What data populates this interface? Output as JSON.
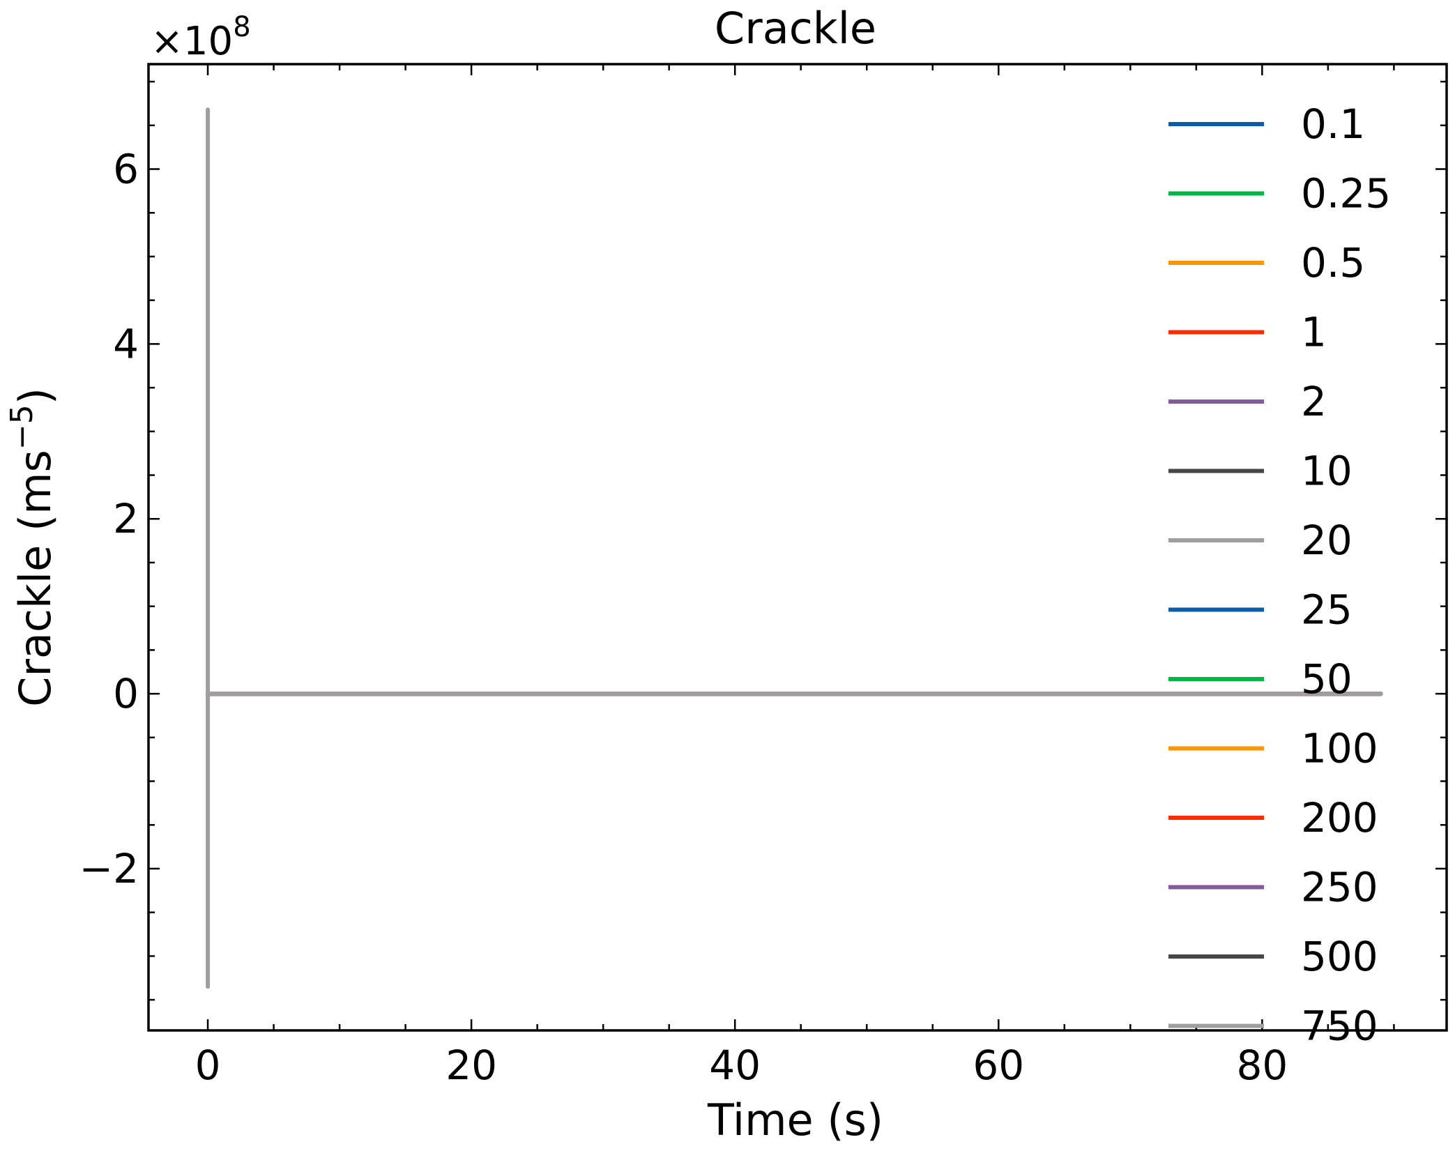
{
  "chart_data": {
    "type": "line",
    "title": "Crackle",
    "xlabel": "Time (s)",
    "ylabel": "Crackle (ms",
    "ylabel_sup": "−5",
    "ylabel_close": ")",
    "y_offset_text": "×10",
    "y_offset_exp": "8",
    "xlim": [
      -4.5,
      94
    ],
    "ylim": [
      -3.85,
      7.2
    ],
    "y_scale": 100000000,
    "x_ticks": [
      0,
      20,
      40,
      60,
      80
    ],
    "x_tick_labels": [
      "0",
      "20",
      "40",
      "60",
      "80"
    ],
    "y_ticks": [
      -2,
      0,
      2,
      4,
      6
    ],
    "y_tick_labels": [
      "−2",
      "0",
      "2",
      "4",
      "6"
    ],
    "grid": false,
    "legend_position": "right",
    "series": [
      {
        "name": "0.1",
        "color": "#0c5da5",
        "points": [
          [
            0,
            0
          ],
          [
            89,
            0
          ]
        ]
      },
      {
        "name": "0.25",
        "color": "#00b945",
        "points": [
          [
            0,
            0
          ],
          [
            89,
            0
          ]
        ]
      },
      {
        "name": "0.5",
        "color": "#ff9500",
        "points": [
          [
            0,
            0
          ],
          [
            89,
            0
          ]
        ]
      },
      {
        "name": "1",
        "color": "#ff2c00",
        "points": [
          [
            0,
            0
          ],
          [
            89,
            0
          ]
        ]
      },
      {
        "name": "2",
        "color": "#845b97",
        "points": [
          [
            0,
            0
          ],
          [
            89,
            0
          ]
        ]
      },
      {
        "name": "10",
        "color": "#474747",
        "points": [
          [
            0,
            0
          ],
          [
            89,
            0
          ]
        ]
      },
      {
        "name": "20",
        "color": "#9e9e9e",
        "points": [
          [
            0,
            0
          ],
          [
            89,
            0
          ]
        ]
      },
      {
        "name": "25",
        "color": "#0c5da5",
        "points": [
          [
            0,
            0
          ],
          [
            89,
            0
          ]
        ]
      },
      {
        "name": "50",
        "color": "#00b945",
        "points": [
          [
            0,
            0
          ],
          [
            89,
            0
          ]
        ]
      },
      {
        "name": "100",
        "color": "#ff9500",
        "points": [
          [
            0,
            0
          ],
          [
            89,
            0
          ]
        ]
      },
      {
        "name": "200",
        "color": "#ff2c00",
        "points": [
          [
            0,
            0
          ],
          [
            89,
            0
          ]
        ]
      },
      {
        "name": "250",
        "color": "#845b97",
        "points": [
          [
            0,
            0
          ],
          [
            89,
            0
          ]
        ]
      },
      {
        "name": "500",
        "color": "#474747",
        "points": [
          [
            0,
            0
          ],
          [
            89,
            0
          ]
        ]
      },
      {
        "name": "750",
        "color": "#9e9e9e",
        "points": [
          [
            0,
            0
          ],
          [
            0,
            6.68
          ],
          [
            0,
            -3.35
          ],
          [
            0,
            0
          ],
          [
            89,
            0
          ]
        ]
      }
    ]
  }
}
